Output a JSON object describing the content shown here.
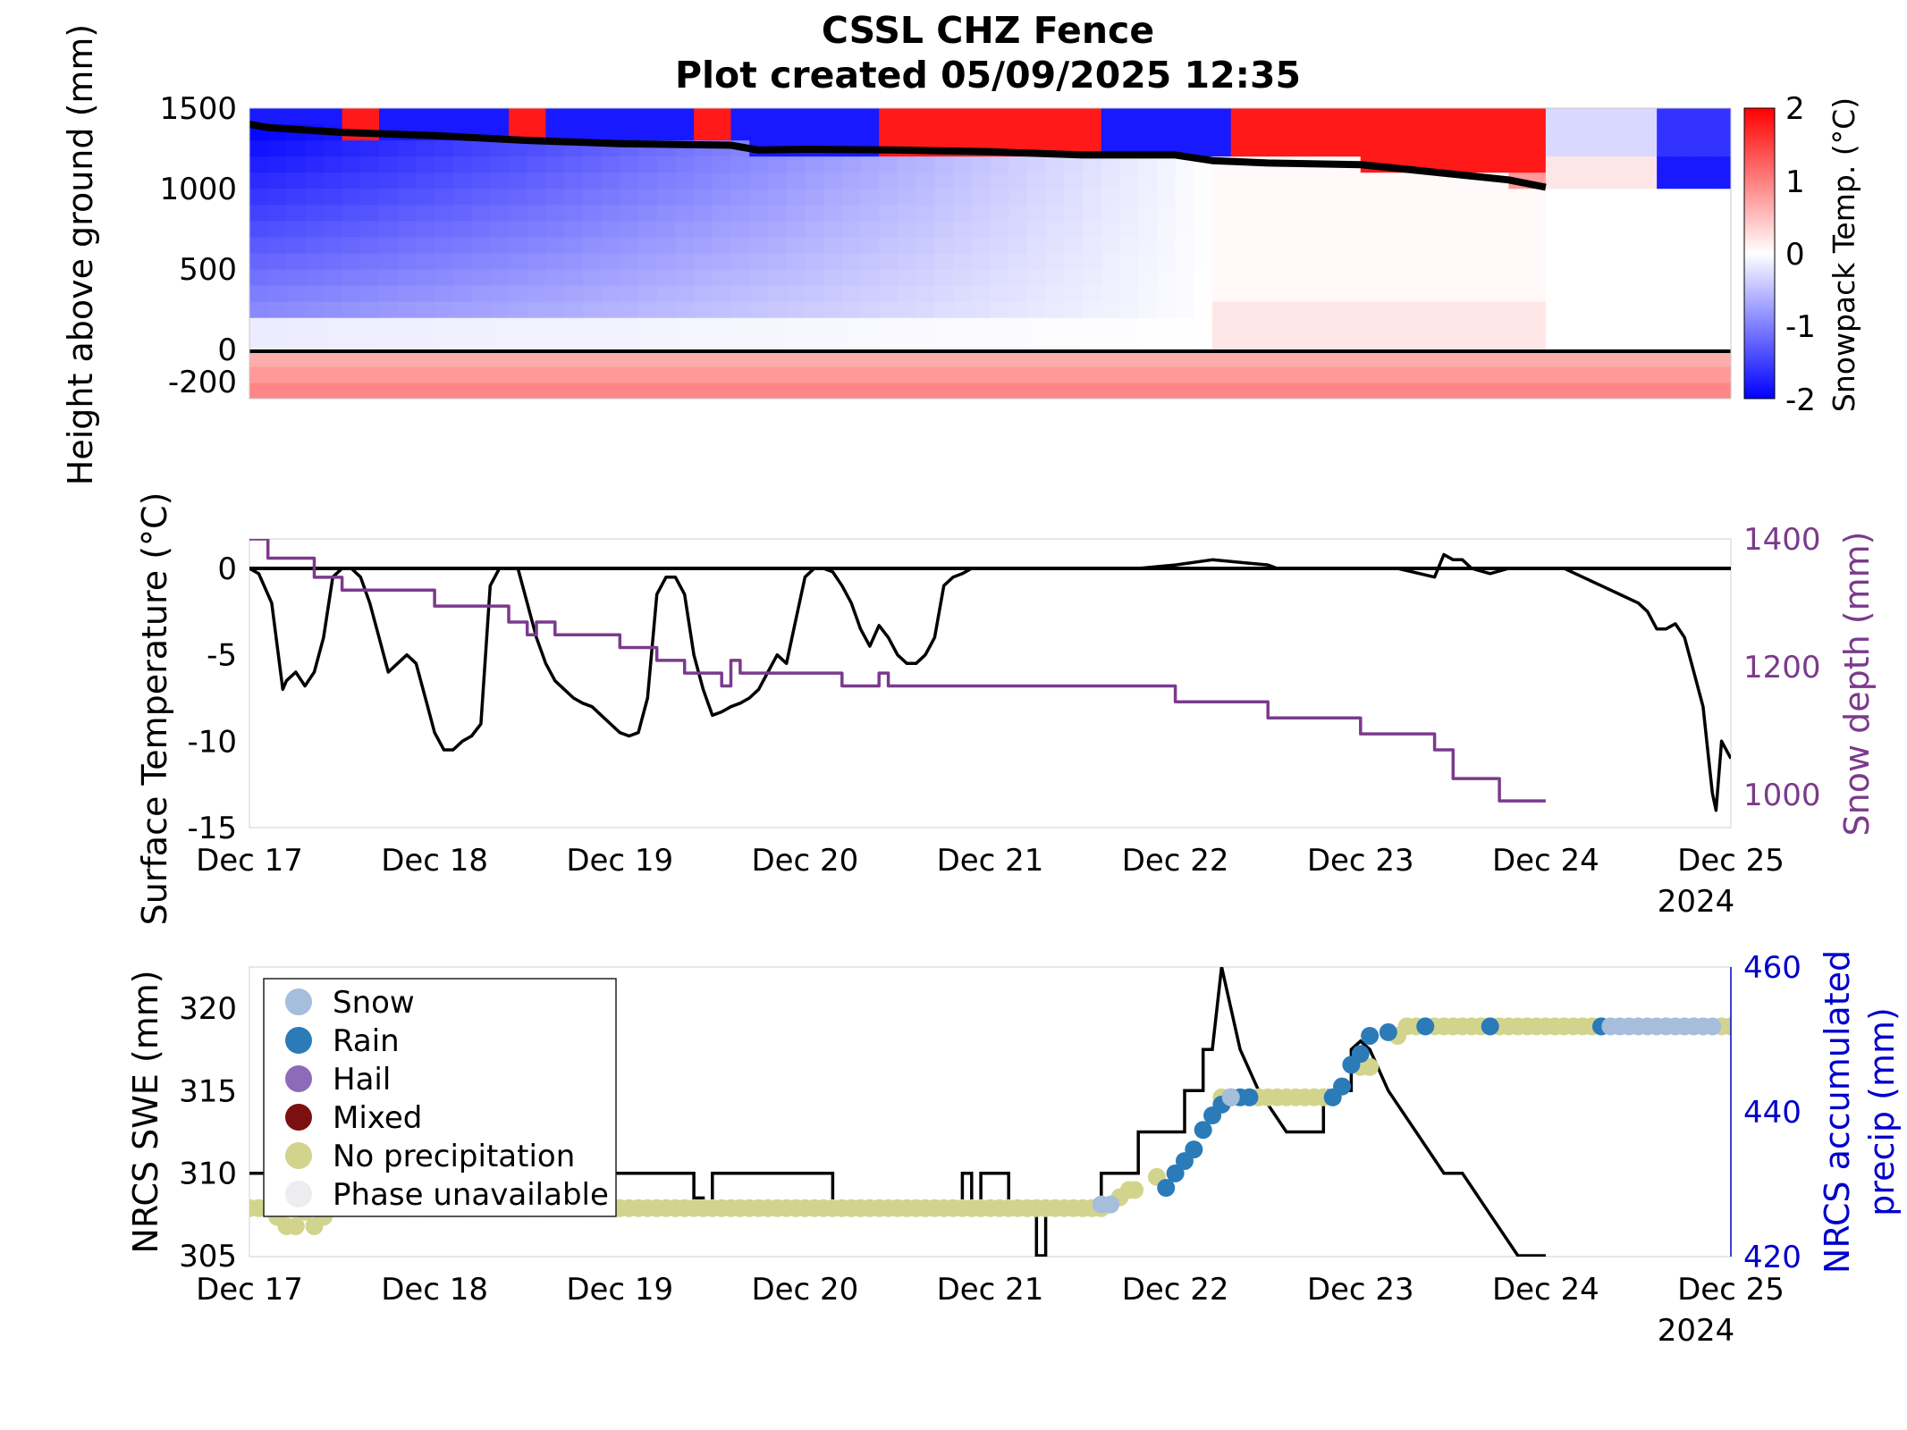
{
  "title_line1": "CSSL CHZ Fence",
  "title_line2": "Plot created 05/09/2025 12:35",
  "colors": {
    "cold": "#0000ff",
    "warm": "#ff0000",
    "neutral": "#ffffff",
    "temperature_line": "#000000",
    "snow_depth_line": "#7b3a8c",
    "swe_line": "#000000",
    "precip_axis": "#0000cc",
    "phase_snow": "#a6bddb",
    "phase_rain": "#2b7bb9",
    "phase_hail": "#8e6bb8",
    "phase_mixed": "#7a1010",
    "phase_none": "#d2d48e",
    "phase_unavailable": "#ededf0"
  },
  "chart_data": [
    {
      "type": "heatmap",
      "name": "snowpack-temperature-profile",
      "ylabel": "Height above ground (mm)",
      "colorbar_label": "Snowpack Temp. (°C)",
      "colorbar_range": [
        -2,
        2
      ],
      "colorbar_ticks": [
        "2",
        "1",
        "0",
        "-1",
        "-2"
      ],
      "ylim": [
        -300,
        1500
      ],
      "yticks": [
        "1500",
        "1000",
        "500",
        "0",
        "-200"
      ],
      "x_range_days": [
        0,
        8
      ],
      "ground_line_mm": 0,
      "snow_surface": {
        "t_days": [
          0,
          0.1,
          0.5,
          1,
          1.5,
          2,
          2.6,
          2.75,
          3,
          3.5,
          4,
          4.5,
          5,
          5.2,
          5.5,
          6,
          6.3,
          6.8,
          7.0
        ],
        "height_mm": [
          1400,
          1380,
          1350,
          1330,
          1300,
          1280,
          1270,
          1240,
          1245,
          1240,
          1230,
          1210,
          1210,
          1175,
          1160,
          1150,
          1115,
          1055,
          1010
        ]
      },
      "warm_top_patches": [
        {
          "t0": 0.5,
          "t1": 0.65
        },
        {
          "t0": 1.45,
          "t1": 1.6
        },
        {
          "t0": 2.45,
          "t1": 2.65
        },
        {
          "t0": 3.4,
          "t1": 3.5
        },
        {
          "t0": 3.45,
          "t1": 4.6
        },
        {
          "t0": 5.3,
          "t1": 7.0
        }
      ]
    },
    {
      "type": "line",
      "name": "surface-temperature-and-snow-depth",
      "x_tick_labels": [
        "Dec 17",
        "Dec 18",
        "Dec 19",
        "Dec 20",
        "Dec 21",
        "Dec 22",
        "Dec 23",
        "Dec 24",
        "Dec 25"
      ],
      "x_year_label": "2024",
      "ylabel_left": "Surface Temperature (°C)",
      "ylim_left": [
        -15,
        2
      ],
      "yticks_left": [
        "0",
        "-5",
        "-10",
        "-15"
      ],
      "ylabel_right": "Snow depth (mm)",
      "ylim_right": [
        950,
        1400
      ],
      "yticks_right": [
        "1400",
        "1200",
        "1000"
      ],
      "series": [
        {
          "name": "Surface Temperature",
          "axis": "left",
          "t_days": [
            0,
            0.05,
            0.12,
            0.18,
            0.2,
            0.25,
            0.3,
            0.35,
            0.4,
            0.45,
            0.5,
            0.55,
            0.6,
            0.65,
            0.7,
            0.75,
            0.8,
            0.85,
            0.9,
            0.95,
            1.0,
            1.05,
            1.1,
            1.15,
            1.2,
            1.25,
            1.3,
            1.35,
            1.4,
            1.45,
            1.5,
            1.55,
            1.6,
            1.65,
            1.7,
            1.75,
            1.8,
            1.85,
            1.9,
            1.95,
            2.0,
            2.05,
            2.1,
            2.15,
            2.2,
            2.25,
            2.3,
            2.35,
            2.4,
            2.45,
            2.5,
            2.55,
            2.6,
            2.65,
            2.7,
            2.75,
            2.8,
            2.85,
            2.9,
            2.95,
            3.0,
            3.05,
            3.1,
            3.15,
            3.2,
            3.25,
            3.3,
            3.35,
            3.4,
            3.45,
            3.5,
            3.55,
            3.6,
            3.65,
            3.7,
            3.75,
            3.8,
            3.85,
            3.9,
            3.95,
            4.0,
            4.05,
            4.1,
            4.15,
            4.2,
            4.3,
            4.5,
            4.8,
            5.0,
            5.2,
            5.5,
            5.55,
            5.6,
            5.8,
            6.0,
            6.2,
            6.4,
            6.45,
            6.5,
            6.55,
            6.6,
            6.7,
            6.8,
            6.9,
            7.0,
            7.1,
            7.2,
            7.3,
            7.4,
            7.5,
            7.55,
            7.6,
            7.65,
            7.7,
            7.75,
            7.8,
            7.85,
            7.88,
            7.9,
            7.92,
            7.95,
            8.0
          ],
          "values": [
            0,
            -0.3,
            -2,
            -7,
            -6.5,
            -6,
            -6.8,
            -6,
            -4,
            -0.5,
            0,
            0,
            -0.5,
            -2,
            -4,
            -6,
            -5.5,
            -5,
            -5.5,
            -7.5,
            -9.5,
            -10.5,
            -10.5,
            -10,
            -9.7,
            -9,
            -1,
            0,
            0,
            0,
            -2,
            -4,
            -5.5,
            -6.5,
            -7,
            -7.5,
            -7.8,
            -8,
            -8.5,
            -9,
            -9.5,
            -9.7,
            -9.5,
            -7.5,
            -1.5,
            -0.5,
            -0.5,
            -1.5,
            -5,
            -7,
            -8.5,
            -8.3,
            -8,
            -7.8,
            -7.5,
            -7,
            -6,
            -5,
            -5.5,
            -3,
            -0.5,
            0,
            0,
            -0.2,
            -1,
            -2,
            -3.5,
            -4.5,
            -3.3,
            -4,
            -5,
            -5.5,
            -5.5,
            -5,
            -4,
            -1,
            -0.5,
            -0.3,
            0,
            0,
            0,
            0,
            0,
            0,
            0,
            0,
            0,
            0,
            0.2,
            0.5,
            0.2,
            0,
            0,
            0,
            0,
            0,
            -0.5,
            0.8,
            0.5,
            0.5,
            0,
            -0.3,
            0,
            0,
            0,
            0,
            -0.5,
            -1,
            -1.5,
            -2,
            -2.5,
            -3.5,
            -3.5,
            -3.2,
            -4,
            -6,
            -8,
            -11,
            -13,
            -14,
            -10,
            -11
          ]
        },
        {
          "name": "Snow depth",
          "axis": "right",
          "t_days": [
            0,
            0.1,
            0.1,
            0.35,
            0.35,
            0.5,
            0.5,
            1.0,
            1.0,
            1.4,
            1.4,
            1.5,
            1.5,
            1.55,
            1.55,
            1.65,
            1.65,
            2.0,
            2.0,
            2.2,
            2.2,
            2.35,
            2.35,
            2.55,
            2.55,
            2.6,
            2.6,
            2.65,
            2.65,
            3.0,
            3.0,
            3.2,
            3.2,
            3.4,
            3.4,
            3.45,
            3.45,
            3.5,
            3.5,
            4.0,
            4.0,
            5.0,
            5.0,
            5.15,
            5.15,
            5.5,
            5.5,
            6.0,
            6.0,
            6.4,
            6.4,
            6.5,
            6.5,
            6.75,
            6.75,
            7.0
          ],
          "values": [
            1400,
            1400,
            1370,
            1370,
            1340,
            1340,
            1320,
            1320,
            1295,
            1295,
            1270,
            1270,
            1250,
            1250,
            1270,
            1270,
            1250,
            1250,
            1230,
            1230,
            1210,
            1210,
            1190,
            1190,
            1170,
            1170,
            1210,
            1210,
            1190,
            1190,
            1190,
            1190,
            1170,
            1170,
            1190,
            1190,
            1170,
            1170,
            1170,
            1170,
            1170,
            1170,
            1145,
            1145,
            1145,
            1145,
            1120,
            1120,
            1095,
            1095,
            1070,
            1070,
            1025,
            1025,
            990,
            990
          ]
        }
      ]
    },
    {
      "type": "line",
      "name": "nrcs-swe-and-precipitation",
      "x_tick_labels": [
        "Dec 17",
        "Dec 18",
        "Dec 19",
        "Dec 20",
        "Dec 21",
        "Dec 22",
        "Dec 23",
        "Dec 24",
        "Dec 25"
      ],
      "x_year_label": "2024",
      "ylabel_left": "NRCS SWE (mm)",
      "ylim_left": [
        304.5,
        323
      ],
      "yticks_left": [
        "320",
        "315",
        "310",
        "305"
      ],
      "ylabel_right_line1": "NRCS accumulated",
      "ylabel_right_line2": "precip (mm)",
      "ylim_right": [
        420,
        460
      ],
      "yticks_right": [
        "460",
        "440",
        "420"
      ],
      "legend": {
        "location": "upper-left",
        "entries": [
          "Snow",
          "Rain",
          "Hail",
          "Mixed",
          "No precipitation",
          "Phase unavailable"
        ]
      },
      "swe": {
        "t_days": [
          0,
          2.4,
          2.4,
          2.45,
          2.45,
          2.5,
          2.5,
          3.15,
          3.15,
          3.85,
          3.85,
          3.9,
          3.9,
          3.95,
          3.95,
          4.1,
          4.1,
          4.25,
          4.25,
          4.3,
          4.3,
          4.5,
          4.5,
          4.6,
          4.6,
          4.8,
          4.8,
          5.05,
          5.05,
          5.15,
          5.15,
          5.2,
          5.25,
          5.35,
          5.35,
          5.45,
          5.45,
          5.6,
          5.6,
          5.8,
          5.8,
          5.95,
          5.95,
          6.0,
          6.05,
          6.15,
          6.15,
          6.3,
          6.3,
          6.45,
          6.45,
          6.55,
          6.55,
          6.7,
          6.7,
          6.85,
          6.85,
          6.95,
          6.95,
          7.0
        ],
        "values": [
          310,
          310,
          308.5,
          308.5,
          307.5,
          307.5,
          310,
          310,
          307.5,
          307.5,
          310,
          310,
          307.5,
          307.5,
          310,
          310,
          307.5,
          307.5,
          305,
          305,
          307.5,
          307.5,
          307.5,
          307.5,
          310,
          310,
          312.5,
          312.5,
          315,
          315,
          317.5,
          317.5,
          322.5,
          317.5,
          317.5,
          315,
          315,
          312.5,
          312.5,
          312.5,
          315,
          315,
          317.5,
          318,
          317.5,
          315,
          315,
          312.5,
          312.5,
          310,
          310,
          310,
          310,
          307.5,
          307.5,
          305,
          305,
          305,
          305,
          305
        ]
      },
      "precip_points": {
        "none_t": [
          0,
          0.05,
          0.1,
          0.15,
          0.2,
          0.25,
          0.3,
          0.35,
          0.4,
          0.45,
          0.5,
          0.55,
          0.6,
          0.65,
          0.7,
          0.75,
          0.8,
          0.85,
          0.9,
          0.95,
          1.0,
          1.05,
          1.1,
          1.15,
          1.2,
          1.25,
          1.3,
          1.35,
          1.4,
          1.45,
          1.5,
          1.55,
          1.6,
          1.65,
          1.7,
          1.75,
          1.8,
          1.85,
          1.9,
          1.95,
          2.0,
          2.05,
          2.1,
          2.15,
          2.2,
          2.25,
          2.3,
          2.35,
          2.4,
          2.45,
          2.5,
          2.55,
          2.6,
          2.65,
          2.7,
          2.75,
          2.8,
          2.85,
          2.9,
          2.95,
          3.0,
          3.05,
          3.1,
          3.15,
          3.2,
          3.25,
          3.3,
          3.35,
          3.4,
          3.45,
          3.5,
          3.55,
          3.6,
          3.65,
          3.7,
          3.75,
          3.8,
          3.85,
          3.9,
          3.95,
          4.0,
          4.05,
          4.1,
          4.15,
          4.2,
          4.25,
          4.3,
          4.35,
          4.4,
          4.45,
          4.5,
          4.55,
          4.6,
          4.7,
          4.75,
          4.78,
          4.9,
          5.25,
          5.3,
          5.35,
          5.4,
          5.45,
          5.5,
          5.55,
          5.6,
          5.65,
          5.7,
          5.75,
          5.8,
          5.85,
          6.0,
          6.05,
          6.2,
          6.25,
          6.3,
          6.35,
          6.4,
          6.45,
          6.5,
          6.55,
          6.6,
          6.65,
          6.7,
          6.75,
          6.8,
          6.85,
          6.9,
          6.95,
          7.0,
          7.05,
          7.1,
          7.15,
          7.2,
          7.25,
          7.3,
          7.95,
          8.0
        ],
        "none_v": [
          426.7,
          426.7,
          426.7,
          425.5,
          424.2,
          424.2,
          426.2,
          424.2,
          425.5,
          426.7,
          426.7,
          426.7,
          426.7,
          426.7,
          426.7,
          426.7,
          426.7,
          426.7,
          426.7,
          426.7,
          426.7,
          426.7,
          426.7,
          426.7,
          426.7,
          426.7,
          426.7,
          426.7,
          426.7,
          426.7,
          426.7,
          426.7,
          426.7,
          426.7,
          426.7,
          426.7,
          426.7,
          426.7,
          426.7,
          426.7,
          426.7,
          426.7,
          426.7,
          426.7,
          426.7,
          426.7,
          426.7,
          426.7,
          426.7,
          426.7,
          426.7,
          426.7,
          426.7,
          426.7,
          426.7,
          426.7,
          426.7,
          426.7,
          426.7,
          426.7,
          426.7,
          426.7,
          426.7,
          426.7,
          426.7,
          426.7,
          426.7,
          426.7,
          426.7,
          426.7,
          426.7,
          426.7,
          426.7,
          426.7,
          426.7,
          426.7,
          426.7,
          426.7,
          426.7,
          426.7,
          426.7,
          426.7,
          426.7,
          426.7,
          426.7,
          426.7,
          426.7,
          426.7,
          426.7,
          426.7,
          426.7,
          426.7,
          426.7,
          428.2,
          429.2,
          429.2,
          431.0,
          442.0,
          442.0,
          442.0,
          442.0,
          442.0,
          442.0,
          442.0,
          442.0,
          442.0,
          442.0,
          442.0,
          442.0,
          442.0,
          446.2,
          446.2,
          450.5,
          451.8,
          451.8,
          451.8,
          451.8,
          451.8,
          451.8,
          451.8,
          451.8,
          451.8,
          451.8,
          451.8,
          451.8,
          451.8,
          451.8,
          451.8,
          451.8,
          451.8,
          451.8,
          451.8,
          451.8,
          451.8,
          451.8,
          451.8,
          451.8
        ],
        "rain_t": [
          4.95,
          5.0,
          5.05,
          5.1,
          5.15,
          5.2,
          5.25,
          5.3,
          5.35,
          5.4,
          5.85,
          5.9,
          5.95,
          6.0,
          6.05,
          6.15,
          6.35,
          6.7,
          7.3
        ],
        "rain_v": [
          429.5,
          431.5,
          433.2,
          434.8,
          437.5,
          439.5,
          441.0,
          442.0,
          442.0,
          442.0,
          442.0,
          443.5,
          446.5,
          448.0,
          450.5,
          451.0,
          451.8,
          451.8,
          451.8
        ],
        "snow_t": [
          4.6,
          4.65,
          5.3,
          7.35,
          7.4,
          7.45,
          7.5,
          7.55,
          7.6,
          7.65,
          7.7,
          7.75,
          7.8,
          7.85,
          7.9
        ],
        "snow_v": [
          427.2,
          427.2,
          442.0,
          451.8,
          451.8,
          451.8,
          451.8,
          451.8,
          451.8,
          451.8,
          451.8,
          451.8,
          451.8,
          451.8,
          451.8
        ]
      }
    }
  ]
}
